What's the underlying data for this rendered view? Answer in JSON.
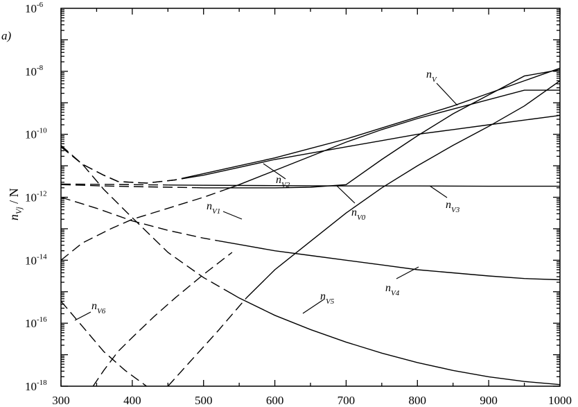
{
  "chart_data": {
    "type": "line",
    "panel_label": "a)",
    "ylabel": {
      "main": "n",
      "sub": "Vj",
      "suffix": " / N"
    },
    "xlim": [
      300,
      1000
    ],
    "ylim_log10": [
      -18,
      -6
    ],
    "yscale": "log",
    "x_ticks": [
      "300",
      "400",
      "500",
      "600",
      "700",
      "800",
      "900",
      "1000"
    ],
    "y_ticks": [
      {
        "base": "10",
        "exp": "-6"
      },
      {
        "base": "10",
        "exp": "-8"
      },
      {
        "base": "10",
        "exp": "-10"
      },
      {
        "base": "10",
        "exp": "-12"
      },
      {
        "base": "10",
        "exp": "-14"
      },
      {
        "base": "10",
        "exp": "-16"
      },
      {
        "base": "10",
        "exp": "-18"
      }
    ],
    "note": "Solid segments are drawn for higher x; dashed segments for lower x.",
    "series": [
      {
        "id": "nV",
        "label": "n",
        "sub": "V",
        "solid_from": 470,
        "x": [
          300,
          330,
          360,
          380,
          420,
          460,
          500,
          550,
          600,
          650,
          700,
          750,
          800,
          850,
          900,
          950,
          1000
        ],
        "log10_y": [
          -10.4,
          -10.95,
          -11.3,
          -11.5,
          -11.55,
          -11.45,
          -11.25,
          -11.0,
          -10.75,
          -10.45,
          -10.15,
          -9.8,
          -9.45,
          -9.1,
          -8.7,
          -8.3,
          -7.9
        ]
      },
      {
        "id": "nV2",
        "label": "n",
        "sub": "V2",
        "solid_from": 480,
        "x": [
          300,
          330,
          360,
          380,
          420,
          460,
          500,
          550,
          600,
          650,
          700,
          750,
          800,
          850,
          900,
          950,
          1000
        ],
        "log10_y": [
          -10.4,
          -10.95,
          -11.3,
          -11.5,
          -11.55,
          -11.45,
          -11.3,
          -11.05,
          -10.8,
          -10.6,
          -10.4,
          -10.2,
          -10.0,
          -9.85,
          -9.7,
          -9.55,
          -9.4
        ]
      },
      {
        "id": "nV3",
        "label": "n",
        "sub": "V3",
        "solid_from": 450,
        "x": [
          300,
          400,
          500,
          600,
          700,
          800,
          900,
          1000
        ],
        "log10_y": [
          -11.58,
          -11.6,
          -11.62,
          -11.63,
          -11.64,
          -11.64,
          -11.65,
          -11.65
        ]
      },
      {
        "id": "nV0",
        "label": "n",
        "sub": "V0",
        "solid_from": 490,
        "x": [
          300,
          330,
          360,
          400,
          450,
          500,
          550,
          600,
          650,
          700,
          750,
          800,
          850,
          900,
          950,
          1000
        ],
        "log10_y": [
          -11.6,
          -11.62,
          -11.64,
          -11.66,
          -11.68,
          -11.7,
          -11.7,
          -11.7,
          -11.68,
          -11.6,
          -10.8,
          -10.05,
          -9.35,
          -8.75,
          -8.15,
          -7.95
        ]
      },
      {
        "id": "nV1",
        "label": "n",
        "sub": "V1",
        "solid_from": 530,
        "x": [
          300,
          330,
          370,
          400,
          450,
          500,
          550,
          600,
          650,
          700,
          750,
          800,
          850,
          900,
          950,
          1000
        ],
        "log10_y": [
          -14.0,
          -13.45,
          -13.0,
          -12.7,
          -12.35,
          -12.0,
          -11.6,
          -11.15,
          -10.7,
          -10.25,
          -9.85,
          -9.5,
          -9.2,
          -8.9,
          -8.6,
          -8.6
        ]
      },
      {
        "id": "nV4",
        "label": "n",
        "sub": "V4",
        "solid_from": 520,
        "x": [
          300,
          350,
          400,
          450,
          500,
          550,
          600,
          650,
          700,
          750,
          800,
          850,
          900,
          950,
          1000
        ],
        "log10_y": [
          -12.0,
          -12.35,
          -12.75,
          -13.05,
          -13.3,
          -13.5,
          -13.7,
          -13.85,
          -14.0,
          -14.15,
          -14.3,
          -14.4,
          -14.5,
          -14.58,
          -14.62
        ]
      },
      {
        "id": "nV5",
        "label": "n",
        "sub": "V5",
        "solid_from": 540,
        "x": [
          300,
          330,
          360,
          400,
          450,
          500,
          550,
          600,
          650,
          700,
          750,
          800,
          850,
          900,
          950,
          1000
        ],
        "log10_y": [
          -10.35,
          -10.95,
          -11.75,
          -12.65,
          -13.75,
          -14.55,
          -15.2,
          -15.75,
          -16.2,
          -16.6,
          -16.95,
          -17.25,
          -17.5,
          -17.7,
          -17.85,
          -17.95
        ]
      },
      {
        "id": "nV6",
        "label": "n",
        "sub": "V6",
        "solid_from": 2000,
        "x": [
          300,
          330,
          360,
          390,
          420
        ],
        "log10_y": [
          -15.3,
          -16.1,
          -16.9,
          -17.5,
          -18.0
        ]
      },
      {
        "id": "nV7",
        "label": "",
        "sub": "",
        "solid_from": 2000,
        "x": [
          345,
          360,
          380,
          400,
          430,
          460,
          500,
          540
        ],
        "log10_y": [
          -18.0,
          -17.5,
          -16.9,
          -16.45,
          -15.8,
          -15.2,
          -14.45,
          -13.75
        ]
      },
      {
        "id": "nV8",
        "label": "",
        "sub": "",
        "solid_from": 560,
        "x": [
          450,
          480,
          520,
          560,
          600,
          650,
          700,
          750,
          800,
          850,
          900,
          950,
          1000
        ],
        "log10_y": [
          -18.0,
          -17.25,
          -16.25,
          -15.2,
          -14.3,
          -13.4,
          -12.5,
          -11.7,
          -11.0,
          -10.35,
          -9.75,
          -9.1,
          -8.3
        ]
      }
    ],
    "labels": [
      {
        "series": "nV",
        "text": "n",
        "sub": "V"
      },
      {
        "series": "nV2",
        "text": "n",
        "sub": "V2"
      },
      {
        "series": "nV0",
        "text": "n",
        "sub": "V0"
      },
      {
        "series": "nV3",
        "text": "n",
        "sub": "V3"
      },
      {
        "series": "nV1",
        "text": "n",
        "sub": "V1"
      },
      {
        "series": "nV4",
        "text": "n",
        "sub": "V4"
      },
      {
        "series": "nV5",
        "text": "n",
        "sub": "V5"
      },
      {
        "series": "nV6",
        "text": "n",
        "sub": "V6"
      }
    ]
  }
}
